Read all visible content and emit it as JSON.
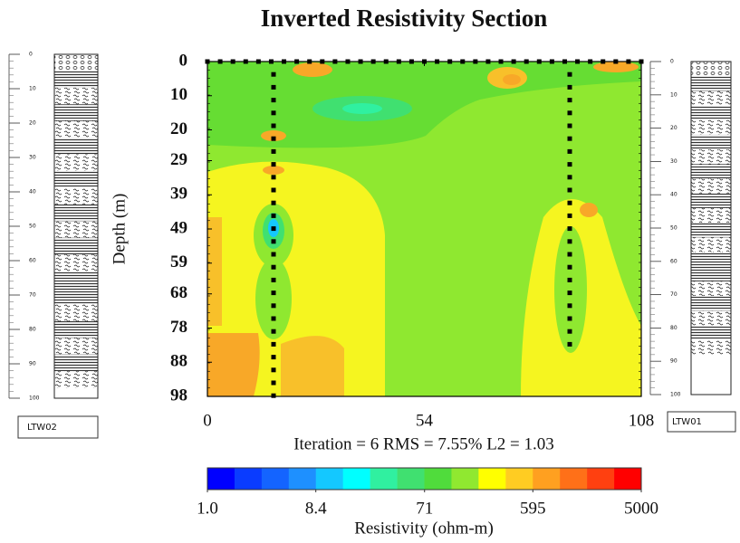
{
  "chart_data": {
    "type": "contour",
    "title": "Inverted Resistivity Section",
    "ylabel": "Depth (m)",
    "ylim": [
      0,
      98
    ],
    "yticks": [
      0,
      10,
      20,
      29,
      39,
      49,
      59,
      68,
      78,
      88,
      98
    ],
    "xlim": [
      0,
      108
    ],
    "xticks": [
      0,
      54,
      108
    ],
    "annotation": "Iteration = 6    RMS = 7.55%    L2 = 1.03",
    "colorbar": {
      "label": "Resistivity (ohm-m)",
      "log": true,
      "lim": [
        1,
        5000
      ],
      "ticks": [
        {
          "value": 1,
          "label": "1.0"
        },
        8.4,
        71,
        595,
        5000
      ],
      "colors": [
        "#0000ff",
        "#0a3cff",
        "#1464ff",
        "#1e90ff",
        "#14c8ff",
        "#00ffff",
        "#30f0a0",
        "#40e070",
        "#50dc3c",
        "#90e830",
        "#ffff00",
        "#ffcc22",
        "#ffa020",
        "#ff7018",
        "#ff4010",
        "#ff0000"
      ]
    },
    "logs": [
      {
        "label": "LTW02",
        "ticks": [
          0,
          10,
          20,
          30,
          40,
          50,
          60,
          70,
          80,
          90,
          100
        ]
      },
      {
        "label": "LTW01",
        "ticks": [
          0,
          10,
          20,
          30,
          40,
          50,
          60,
          70,
          80,
          90,
          100
        ]
      }
    ]
  }
}
